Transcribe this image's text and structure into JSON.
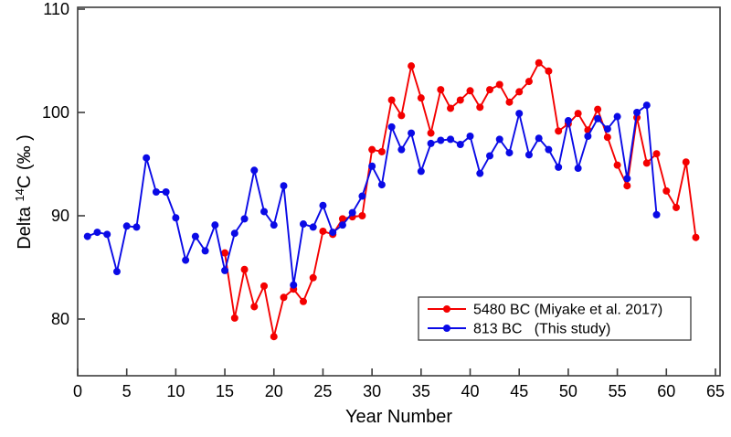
{
  "chart_data": {
    "type": "line",
    "title": "",
    "xlabel": "Year Number",
    "ylabel": {
      "prefix": "Delta ",
      "superscript": "14",
      "suffix": "C  (‰ )"
    },
    "x_ticks": [
      0,
      5,
      10,
      15,
      20,
      25,
      30,
      35,
      40,
      45,
      50,
      55,
      60,
      65
    ],
    "y_ticks": [
      80,
      90,
      100,
      110
    ],
    "xlim": [
      0,
      65.5
    ],
    "ylim": [
      74.5,
      110.2
    ],
    "grid": false,
    "colors": {
      "red": "#f40000",
      "blue": "#0a0ae6",
      "frame": "#3c3c3c"
    },
    "legend": {
      "position": "inside-bottom-right",
      "entries": [
        {
          "label": "5480 BC (Miyake et al. 2017)",
          "color": "#f40000"
        },
        {
          "label": "813 BC   (This study)",
          "color": "#0a0ae6"
        }
      ]
    },
    "series": [
      {
        "name": "5480 BC (Miyake et al. 2017)",
        "color": "#f40000",
        "x": [
          15,
          16,
          17,
          18,
          19,
          20,
          21,
          22,
          23,
          24,
          25,
          26,
          27,
          28,
          29,
          30,
          31,
          32,
          33,
          34,
          35,
          36,
          37,
          38,
          39,
          40,
          41,
          42,
          43,
          44,
          45,
          46,
          47,
          48,
          49,
          50,
          51,
          52,
          53,
          54,
          55,
          56,
          57,
          58,
          59,
          60,
          61,
          62,
          63
        ],
        "y": [
          86.4,
          80.1,
          84.8,
          81.2,
          83.2,
          78.3,
          82.1,
          82.9,
          81.7,
          84.0,
          88.5,
          88.2,
          89.7,
          89.9,
          90.0,
          96.4,
          96.2,
          101.2,
          99.7,
          104.5,
          101.4,
          98.0,
          102.2,
          100.4,
          101.2,
          102.1,
          100.5,
          102.2,
          102.7,
          101.0,
          102.0,
          103.0,
          104.8,
          104.0,
          98.2,
          98.9,
          99.9,
          98.3,
          100.3,
          97.6,
          94.9,
          92.9,
          99.5,
          95.1,
          96.0,
          92.4,
          90.8,
          95.2,
          87.9
        ]
      },
      {
        "name": "813 BC (This study)",
        "color": "#0a0ae6",
        "x": [
          1,
          2,
          3,
          4,
          5,
          6,
          7,
          8,
          9,
          10,
          11,
          12,
          13,
          14,
          15,
          16,
          17,
          18,
          19,
          20,
          21,
          22,
          23,
          24,
          25,
          26,
          27,
          28,
          29,
          30,
          31,
          32,
          33,
          34,
          35,
          36,
          37,
          38,
          39,
          40,
          41,
          42,
          43,
          44,
          45,
          46,
          47,
          48,
          49,
          50,
          51,
          52,
          53,
          54,
          55,
          56,
          57,
          58,
          59
        ],
        "y": [
          88.0,
          88.4,
          88.2,
          84.6,
          89.0,
          88.9,
          95.6,
          92.3,
          92.3,
          89.8,
          85.7,
          88.0,
          86.6,
          89.1,
          84.7,
          88.3,
          89.7,
          94.4,
          90.4,
          89.1,
          92.9,
          83.3,
          89.2,
          88.9,
          91.0,
          88.4,
          89.1,
          90.3,
          91.9,
          94.8,
          93.0,
          98.6,
          96.4,
          98.0,
          94.3,
          97.0,
          97.3,
          97.4,
          96.9,
          97.7,
          94.1,
          95.8,
          97.4,
          96.1,
          99.9,
          95.9,
          97.5,
          96.4,
          94.7,
          99.2,
          94.6,
          97.7,
          99.4,
          98.4,
          99.6,
          93.6,
          100.0,
          100.7,
          90.1
        ]
      }
    ]
  }
}
